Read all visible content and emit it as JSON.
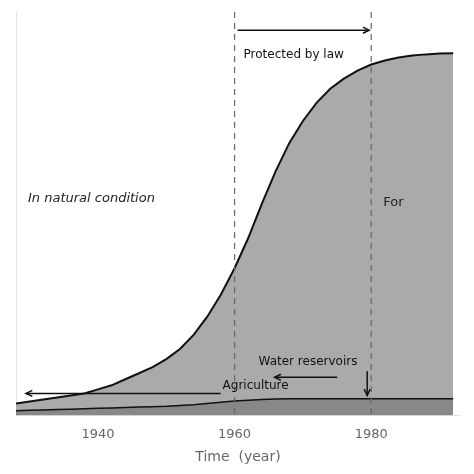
{
  "chart_data": {
    "type": "area",
    "xlabel": "Time  (year)",
    "xlim": [
      1928,
      1993
    ],
    "ylim": [
      0,
      1.0
    ],
    "xticks": [
      1940,
      1960,
      1980
    ],
    "tick_labels": "x",
    "grid": false,
    "vlines": [
      1960,
      1980
    ],
    "annotations": [
      "Protected by law",
      "In natural condition",
      "For",
      "Water reservoirs",
      "Agriculture"
    ],
    "x": [
      1928,
      1930,
      1932,
      1934,
      1936,
      1938,
      1940,
      1942,
      1944,
      1946,
      1948,
      1950,
      1952,
      1954,
      1956,
      1958,
      1960,
      1962,
      1964,
      1966,
      1968,
      1970,
      1972,
      1974,
      1976,
      1978,
      1980,
      1982,
      1984,
      1986,
      1988,
      1990,
      1992
    ],
    "series": [
      {
        "color": "#aaaaaa",
        "values": [
          0.03,
          0.035,
          0.04,
          0.045,
          0.05,
          0.055,
          0.065,
          0.075,
          0.09,
          0.105,
          0.12,
          0.14,
          0.165,
          0.2,
          0.245,
          0.3,
          0.365,
          0.44,
          0.525,
          0.605,
          0.675,
          0.73,
          0.775,
          0.81,
          0.835,
          0.855,
          0.87,
          0.88,
          0.887,
          0.892,
          0.895,
          0.897,
          0.898
        ]
      },
      {
        "color": "#888888",
        "values": [
          0.012,
          0.013,
          0.014,
          0.015,
          0.016,
          0.017,
          0.018,
          0.019,
          0.02,
          0.021,
          0.022,
          0.023,
          0.025,
          0.027,
          0.03,
          0.033,
          0.036,
          0.038,
          0.04,
          0.041,
          0.042,
          0.042,
          0.042,
          0.042,
          0.042,
          0.042,
          0.042,
          0.042,
          0.042,
          0.042,
          0.042,
          0.042,
          0.042
        ]
      }
    ]
  }
}
